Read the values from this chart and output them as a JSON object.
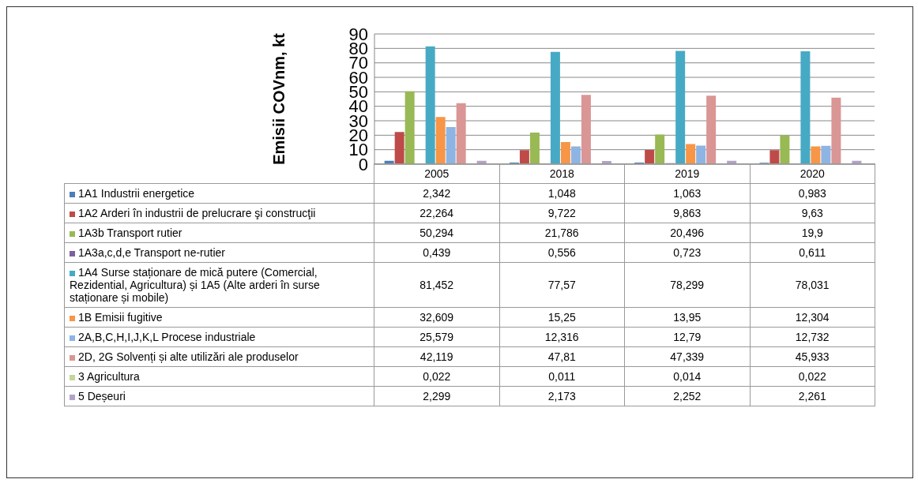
{
  "chart_data": {
    "type": "bar",
    "ylabel": "Emisii COVnm, kt",
    "categories": [
      "2005",
      "2018",
      "2019",
      "2020"
    ],
    "ylim": [
      0,
      90
    ],
    "yticks": [
      0,
      10,
      20,
      30,
      40,
      50,
      60,
      70,
      80,
      90
    ],
    "grid": "y",
    "legend": "bottom",
    "series": [
      {
        "name": "1A1 Industrii energetice",
        "color": "#4a7ebb",
        "values": [
          2.342,
          1.048,
          1.063,
          0.983
        ],
        "value_labels": [
          "2,342",
          "1,048",
          "1,063",
          "0,983"
        ]
      },
      {
        "name": "1A2 Arderi în industrii de prelucrare şi construcţii",
        "color": "#be4b48",
        "values": [
          22.264,
          9.722,
          9.863,
          9.63
        ],
        "value_labels": [
          "22,264",
          "9,722",
          "9,863",
          "9,63"
        ]
      },
      {
        "name": "1A3b Transport rutier",
        "color": "#98b954",
        "values": [
          50.294,
          21.786,
          20.496,
          19.9
        ],
        "value_labels": [
          "50,294",
          "21,786",
          "20,496",
          "19,9"
        ]
      },
      {
        "name": "1A3a,c,d,e Transport ne-rutier",
        "color": "#7d60a0",
        "values": [
          0.439,
          0.556,
          0.723,
          0.611
        ],
        "value_labels": [
          "0,439",
          "0,556",
          "0,723",
          "0,611"
        ]
      },
      {
        "name": "1A4 Surse staționare de mică putere (Comercial, Rezidential, Agricultura) și 1A5 (Alte arderi în surse staționare și mobile)",
        "color": "#46aac5",
        "values": [
          81.452,
          77.57,
          78.299,
          78.031
        ],
        "value_labels": [
          "81,452",
          "77,57",
          "78,299",
          "78,031"
        ]
      },
      {
        "name": "1B Emisii fugitive",
        "color": "#f79646",
        "values": [
          32.609,
          15.25,
          13.95,
          12.304
        ],
        "value_labels": [
          "32,609",
          "15,25",
          "13,95",
          "12,304"
        ]
      },
      {
        "name": "2A,B,C,H,I,J,K,L Procese industriale",
        "color": "#8eb4e3",
        "values": [
          25.579,
          12.316,
          12.79,
          12.732
        ],
        "value_labels": [
          "25,579",
          "12,316",
          "12,79",
          "12,732"
        ]
      },
      {
        "name": "2D, 2G Solvenți și alte utilizări ale produselor",
        "color": "#d99694",
        "values": [
          42.119,
          47.81,
          47.339,
          45.933
        ],
        "value_labels": [
          "42,119",
          "47,81",
          "47,339",
          "45,933"
        ]
      },
      {
        "name": "3 Agricultura",
        "color": "#c3d69b",
        "values": [
          0.022,
          0.011,
          0.014,
          0.022
        ],
        "value_labels": [
          "0,022",
          "0,011",
          "0,014",
          "0,022"
        ]
      },
      {
        "name": "5 Deșeuri",
        "color": "#b3a2c7",
        "values": [
          2.299,
          2.173,
          2.252,
          2.261
        ],
        "value_labels": [
          "2,299",
          "2,173",
          "2,252",
          "2,261"
        ]
      }
    ]
  }
}
